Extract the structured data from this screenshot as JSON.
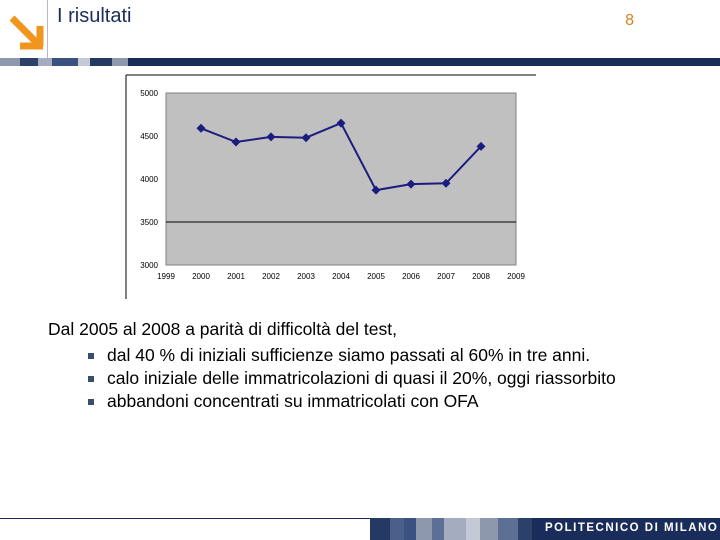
{
  "header": {
    "title": "I risultati",
    "page_number": "8",
    "logo_icon": "diagonal-arrow-logo-icon",
    "accent_color": "#f0961e"
  },
  "chart_data": {
    "type": "line",
    "x": [
      2000,
      2001,
      2002,
      2003,
      2004,
      2005,
      2006,
      2007,
      2008
    ],
    "values": [
      4590,
      4430,
      4490,
      4480,
      4650,
      3870,
      3940,
      3950,
      4380
    ],
    "xlim": [
      1999,
      2009
    ],
    "ylim": [
      3000,
      5000
    ],
    "x_ticks": [
      "1999",
      "2000",
      "2001",
      "2002",
      "2003",
      "2004",
      "2005",
      "2006",
      "2007",
      "2008",
      "2009"
    ],
    "y_ticks": [
      "3000",
      "3500",
      "4000",
      "4500",
      "5000"
    ],
    "gridlines": [
      3500
    ],
    "plot_background": "#c0c0c0",
    "line_color": "#1c1c80",
    "marker": "diamond",
    "legend": "none"
  },
  "body": {
    "lead": "Dal 2005 al 2008 a parità di difficoltà del test,",
    "bullets": [
      "dal 40 % di iniziali sufficienze siamo passati al 60% in tre anni.",
      "calo iniziale delle immatricolazioni di quasi il 20%, oggi riassorbito",
      "abbandoni concentrati su immatricolati con OFA"
    ]
  },
  "footer": {
    "institution": "POLITECNICO DI MILANO"
  }
}
